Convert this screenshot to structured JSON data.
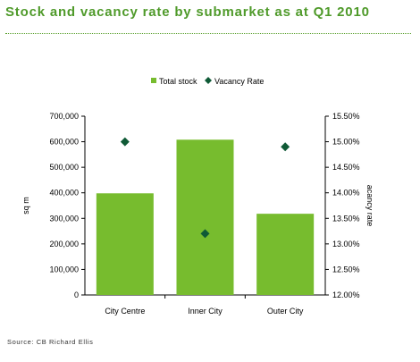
{
  "title": "Stock and vacancy rate by submarket as at Q1 2010",
  "source": "Source: CB Richard Ellis",
  "colors": {
    "bar": "#77bc2e",
    "marker": "#0f5a36",
    "title": "#4f9a2a"
  },
  "chart_data": {
    "type": "bar",
    "title": "Stock and vacancy rate by submarket as at Q1 2010",
    "categories": [
      "City Centre",
      "Inner City",
      "Outer City"
    ],
    "series": [
      {
        "name": "Total stock",
        "type": "bar",
        "axis": "left",
        "values": [
          398000,
          608000,
          318000
        ]
      },
      {
        "name": "Vacancy Rate",
        "type": "scatter",
        "axis": "right",
        "values": [
          15.0,
          13.2,
          14.9
        ]
      }
    ],
    "ylabel": "sq m",
    "y2label": "acancy rate",
    "ylim": [
      0,
      700000
    ],
    "y2lim": [
      12.0,
      15.5
    ],
    "yticks": [
      "0",
      "100,000",
      "200,000",
      "300,000",
      "400,000",
      "500,000",
      "600,000",
      "700,000"
    ],
    "y2ticks": [
      "12.00%",
      "12.50%",
      "13.00%",
      "13.50%",
      "14.00%",
      "14.50%",
      "15.00%",
      "15.50%"
    ],
    "legend": "top-center",
    "grid": false
  }
}
